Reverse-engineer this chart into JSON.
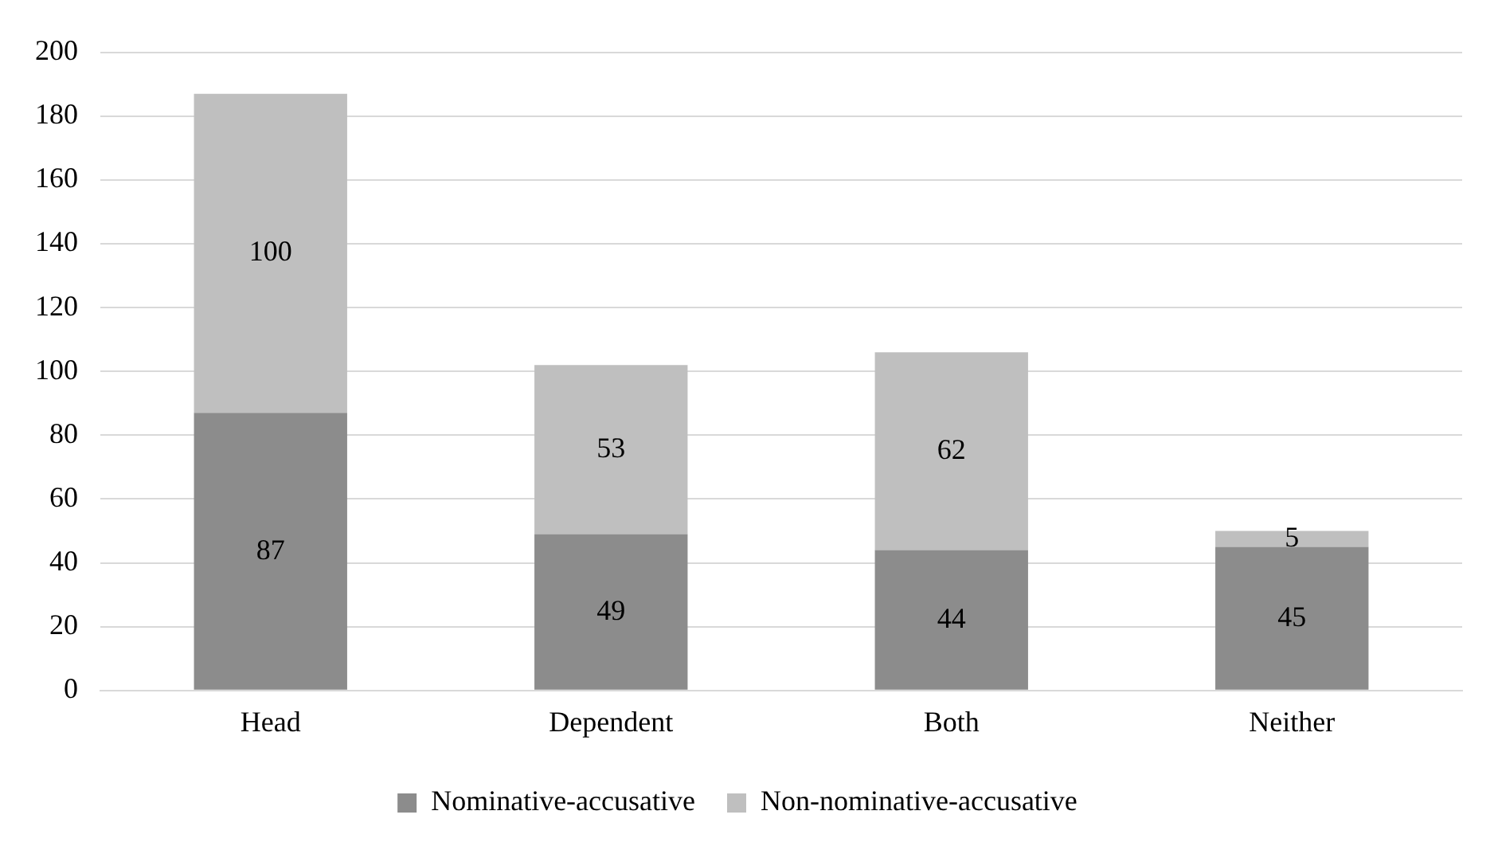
{
  "chart_data": {
    "type": "bar",
    "stacked": true,
    "categories": [
      "Head",
      "Dependent",
      "Both",
      "Neither"
    ],
    "series": [
      {
        "name": "Nominative-accusative",
        "color": "#8c8c8c",
        "values": [
          87,
          49,
          44,
          45
        ]
      },
      {
        "name": "Non-nominative-accusative",
        "color": "#bfbfbf",
        "values": [
          100,
          53,
          62,
          5
        ]
      }
    ],
    "ylim": [
      0,
      200
    ],
    "yticks": [
      0,
      20,
      40,
      60,
      80,
      100,
      120,
      140,
      160,
      180,
      200
    ],
    "grid": "y",
    "legend": "bottom",
    "data_labels": true
  }
}
